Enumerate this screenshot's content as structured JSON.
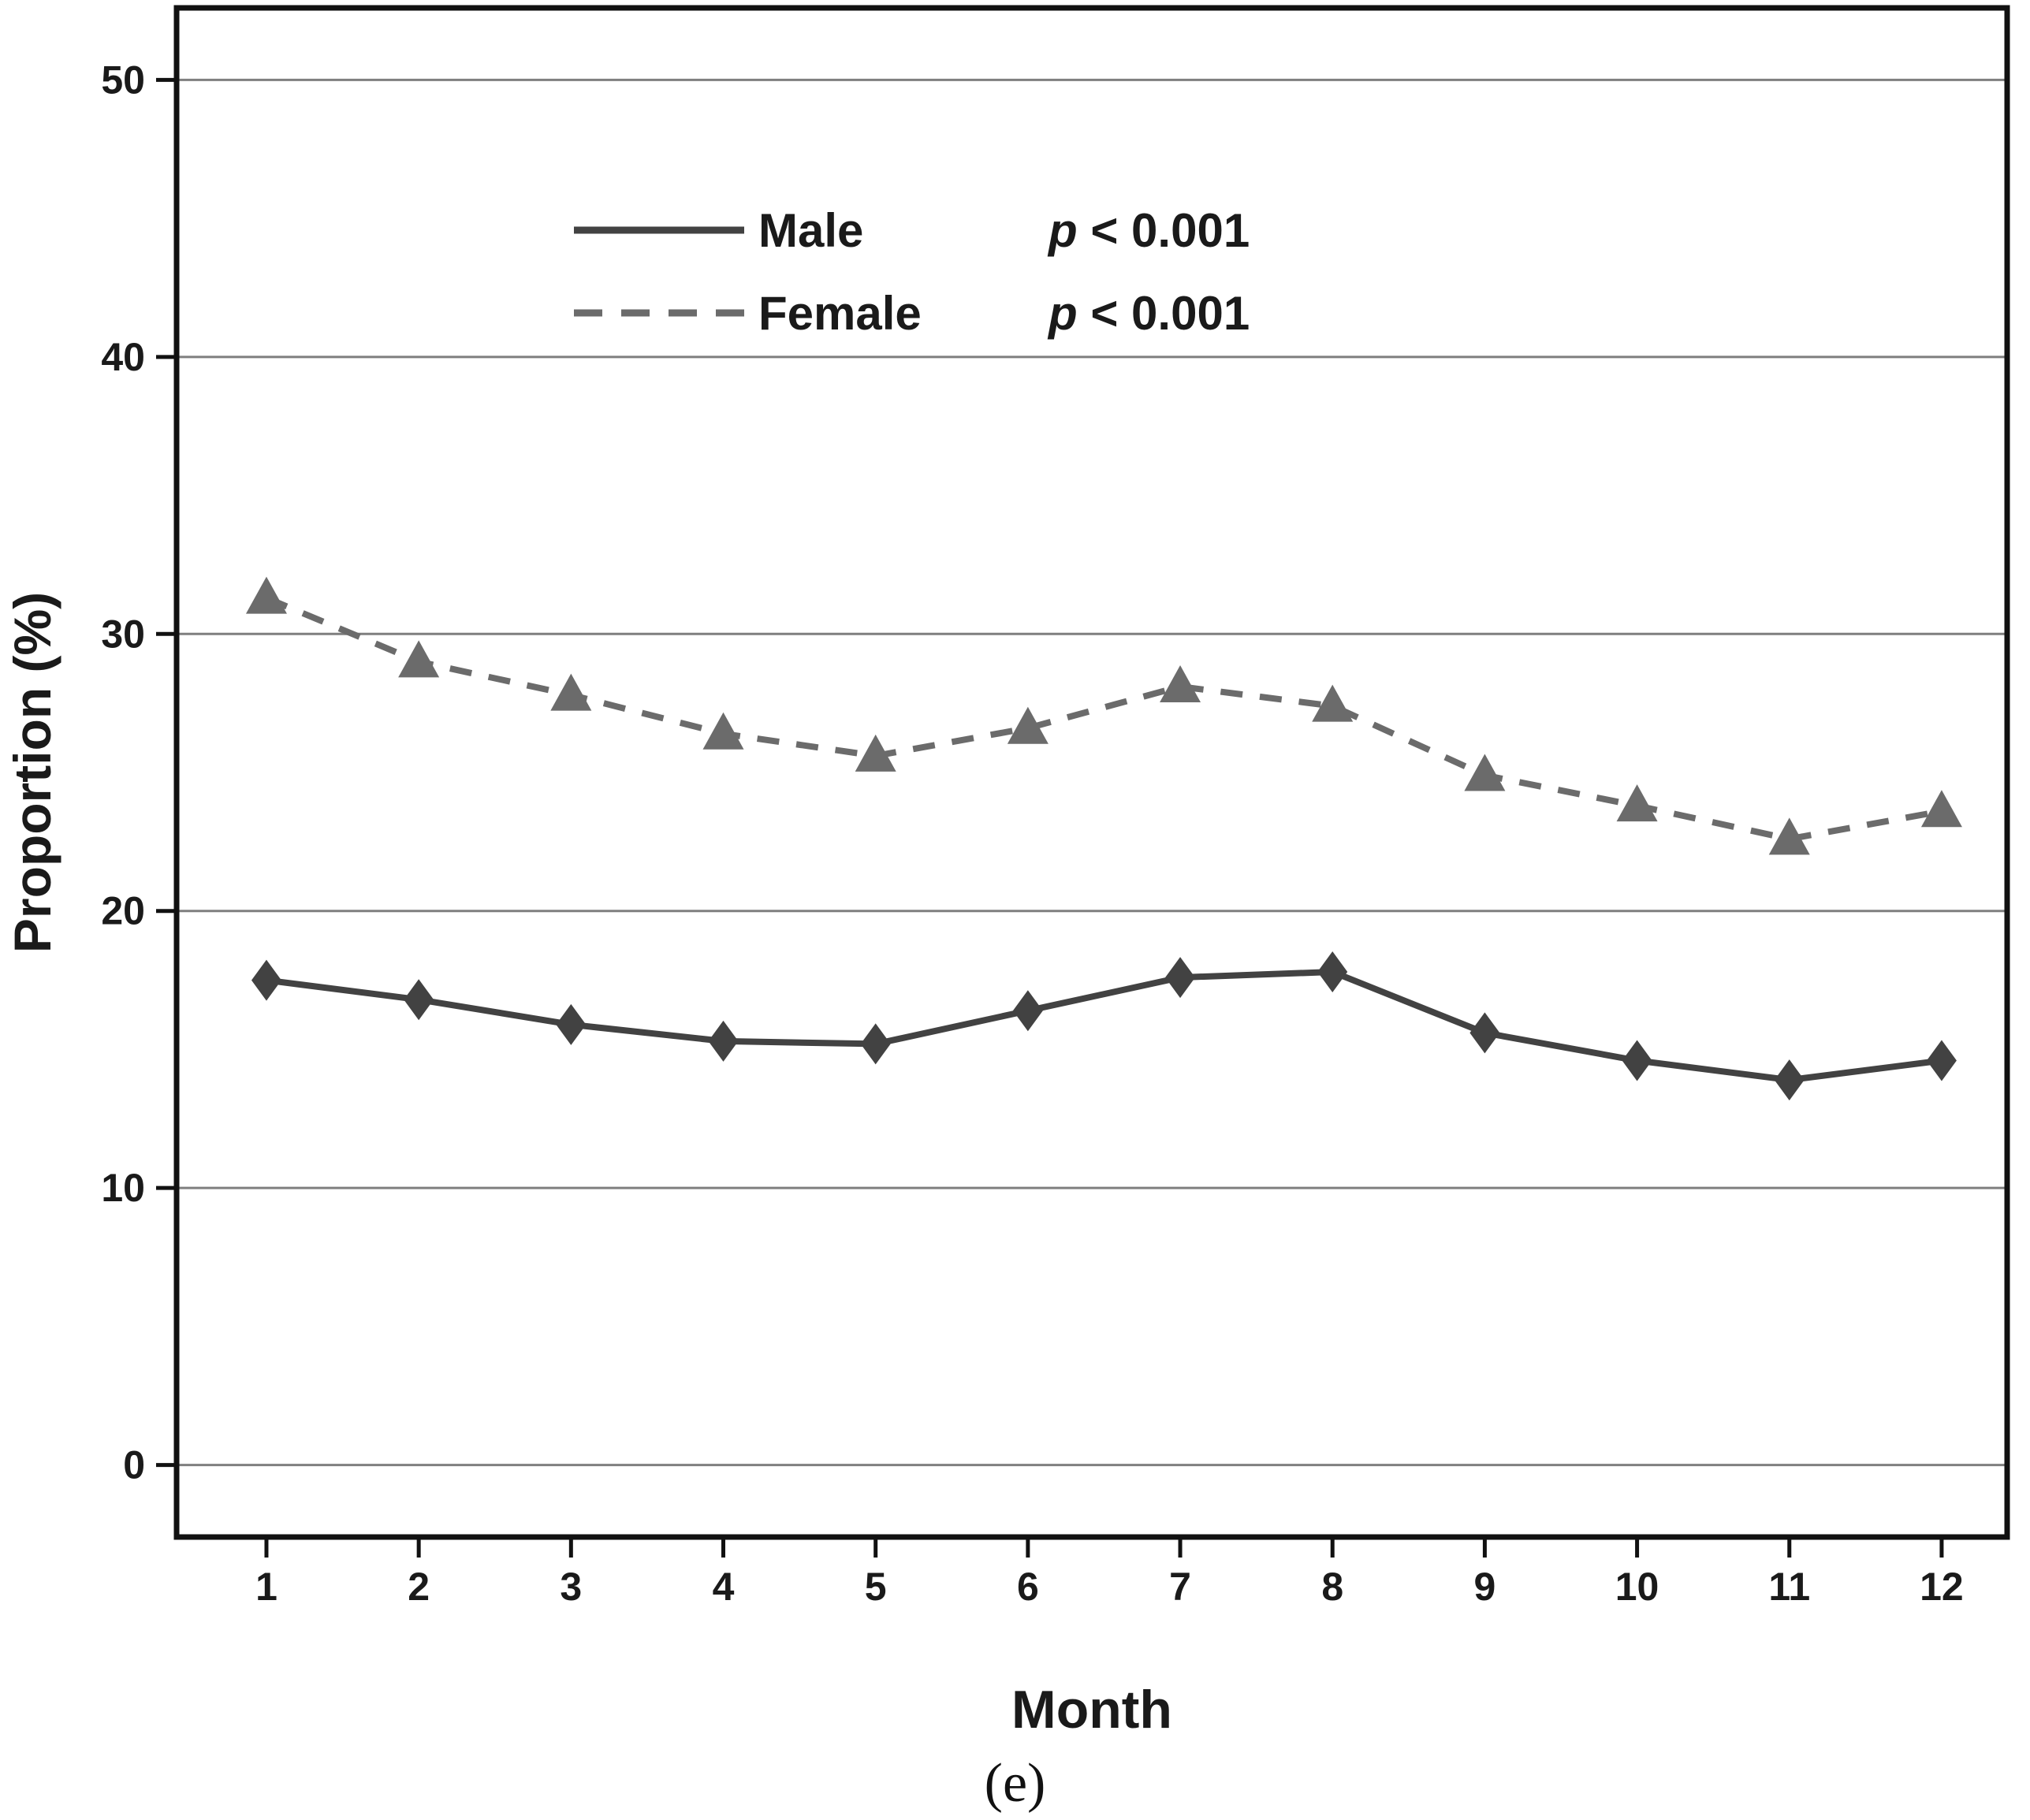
{
  "figure": {
    "caption": "(e)",
    "background_color": "#ffffff"
  },
  "chart_data": {
    "type": "line",
    "title": "",
    "xlabel": "Month",
    "ylabel": "Proportion (%)",
    "categories": [
      1,
      2,
      3,
      4,
      5,
      6,
      7,
      8,
      9,
      10,
      11,
      12
    ],
    "x_tick_labels": [
      "1",
      "2",
      "3",
      "4",
      "5",
      "6",
      "7",
      "8",
      "9",
      "10",
      "11",
      "12"
    ],
    "y_ticks": [
      0,
      10,
      20,
      30,
      40,
      50
    ],
    "y_tick_labels": [
      "0",
      "10",
      "20",
      "30",
      "40",
      "50"
    ],
    "xlim": [
      0.41,
      12.43
    ],
    "ylim": [
      -2.6,
      52.6
    ],
    "grid": "horizontal-only",
    "gridline_color": "#7f7f7f",
    "border_color": "#111111",
    "text_color": "#1a1a1a",
    "legend_position": "inside-top-left",
    "series": [
      {
        "name": "Male",
        "p_value_label": "p < 0.001",
        "line_style": "solid",
        "marker": "diamond",
        "color": "#424242",
        "values": [
          17.5,
          16.8,
          15.9,
          15.3,
          15.2,
          16.4,
          17.6,
          17.8,
          15.6,
          14.6,
          13.9,
          14.6
        ]
      },
      {
        "name": "Female",
        "p_value_label": "p < 0.001",
        "line_style": "dashed",
        "marker": "triangle",
        "color": "#6b6b6b",
        "values": [
          31.3,
          29.0,
          27.8,
          26.4,
          25.6,
          26.6,
          28.1,
          27.4,
          24.9,
          23.8,
          22.6,
          23.6
        ]
      }
    ]
  }
}
